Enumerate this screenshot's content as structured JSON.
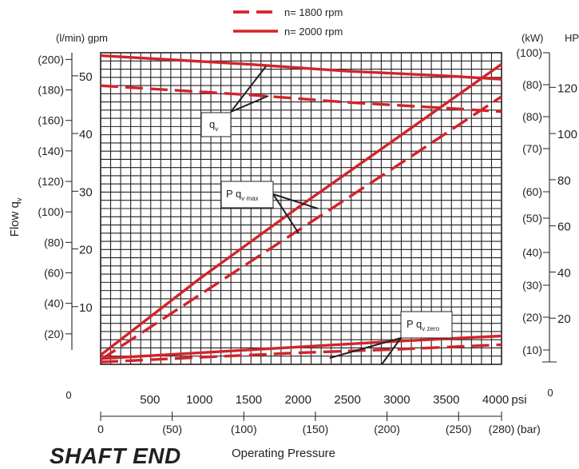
{
  "page_heading": "SHAFT END",
  "chart_data": {
    "type": "line",
    "legend": {
      "placement": "top-center",
      "entries": [
        {
          "label": "n= 1800 rpm",
          "style": "dashed"
        },
        {
          "label": "n= 2000 rpm",
          "style": "solid"
        }
      ]
    },
    "xlabel": "Operating Pressure",
    "x_unit_primary": "psi",
    "x_unit_secondary": "(bar)",
    "x_ticks_psi": [
      "500",
      "1000",
      "1500",
      "2000",
      "2500",
      "3000",
      "3500",
      "4000"
    ],
    "x_origin_label": "0",
    "x_ticks_bar": [
      "0",
      "(50)",
      "(100)",
      "(150)",
      "(200)",
      "(250)",
      "(280)"
    ],
    "xlim_psi": [
      0,
      4060
    ],
    "left_axis": {
      "label": "Flow q",
      "label_sub": "v",
      "unit_header": "(l/min)  gpm",
      "gpm_ticks": [
        "50",
        "40",
        "30",
        "20",
        "10"
      ],
      "lmin_ticks": [
        "(200)",
        "(180)",
        "(160)",
        "(140)",
        "(120)",
        "(100)",
        "(80)",
        "(60)",
        "(40)",
        "(20)"
      ],
      "ylim_gpm": [
        0,
        54
      ],
      "origin_label": "0"
    },
    "right_axis": {
      "unit_header_kw": "(kW)",
      "unit_header_hp": "HP",
      "hp_ticks": [
        "120",
        "100",
        "80",
        "60",
        "40",
        "20"
      ],
      "kw_ticks": [
        "(100)",
        "(80)",
        "(80)",
        "(70)",
        "(60)",
        "(50)",
        "(40)",
        "(30)",
        "(20)",
        "(10)"
      ],
      "ylim_hp": [
        0,
        135
      ],
      "origin_label": "0"
    },
    "grid": true,
    "annotations": [
      {
        "text": "q",
        "sub": "v",
        "target": "flow"
      },
      {
        "text": "P  q",
        "sub": "v max",
        "target": "power_max"
      },
      {
        "text": "P  q",
        "sub": "v zero",
        "target": "power_zero"
      }
    ],
    "series": [
      {
        "group": "flow",
        "style": "solid",
        "axis": "gpm",
        "color": "#d2232a",
        "x": [
          0,
          1500,
          2500,
          3500,
          4060
        ],
        "y": [
          53.5,
          52.0,
          50.8,
          50.0,
          49.4
        ]
      },
      {
        "group": "flow",
        "style": "dashed",
        "axis": "gpm",
        "color": "#d2232a",
        "x": [
          0,
          1500,
          2500,
          3500,
          4060
        ],
        "y": [
          48.3,
          46.7,
          45.4,
          44.4,
          43.8
        ]
      },
      {
        "group": "power_max",
        "style": "solid",
        "axis": "hp",
        "color": "#d2232a",
        "x": [
          0,
          1000,
          2000,
          3000,
          4060
        ],
        "y": [
          4,
          37,
          68,
          98,
          130
        ]
      },
      {
        "group": "power_max",
        "style": "dashed",
        "axis": "hp",
        "color": "#d2232a",
        "x": [
          0,
          1000,
          2000,
          3000,
          4060
        ],
        "y": [
          2,
          30,
          58,
          86,
          116
        ]
      },
      {
        "group": "power_zero",
        "style": "solid",
        "axis": "hp",
        "color": "#d2232a",
        "x": [
          0,
          1000,
          2000,
          3000,
          4060
        ],
        "y": [
          2.5,
          5,
          7.5,
          10,
          12.3
        ]
      },
      {
        "group": "power_zero",
        "style": "dashed",
        "axis": "hp",
        "color": "#d2232a",
        "x": [
          0,
          1000,
          2000,
          3000,
          4060
        ],
        "y": [
          1,
          3,
          5,
          6.5,
          8.5
        ]
      }
    ]
  }
}
